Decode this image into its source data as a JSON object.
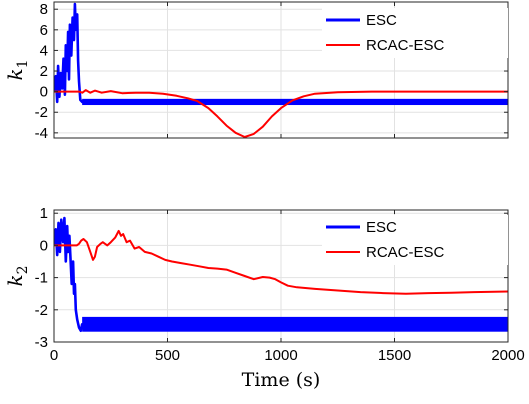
{
  "chart_data": [
    {
      "type": "line",
      "ylabel_var": "k",
      "ylabel_sub": "1",
      "xlim": [
        0,
        2000
      ],
      "ylim": [
        -4.5,
        8.7
      ],
      "yticks": [
        8,
        6,
        4,
        2,
        0,
        -2,
        -4
      ],
      "xticks": [
        0,
        500,
        1000,
        1500,
        2000
      ],
      "grid": true,
      "legend_position": "top-right",
      "series": [
        {
          "name": "ESC",
          "color": "#0000ff",
          "band": true,
          "points": [
            [
              0,
              0
            ],
            [
              8,
              1.5
            ],
            [
              14,
              -1
            ],
            [
              18,
              2.5
            ],
            [
              24,
              -0.5
            ],
            [
              30,
              1.8
            ],
            [
              36,
              0.3
            ],
            [
              42,
              3.2
            ],
            [
              48,
              -0.3
            ],
            [
              52,
              4.5
            ],
            [
              58,
              2
            ],
            [
              62,
              5.8
            ],
            [
              66,
              1.2
            ],
            [
              70,
              6.5
            ],
            [
              76,
              3.5
            ],
            [
              82,
              7.2
            ],
            [
              88,
              5
            ],
            [
              92,
              8.5
            ],
            [
              96,
              6
            ],
            [
              102,
              7.5
            ],
            [
              106,
              3
            ],
            [
              110,
              1
            ],
            [
              116,
              -0.8
            ],
            [
              124,
              -1
            ],
            [
              2000,
              -1
            ]
          ],
          "band_range": [
            -1.3,
            -0.7
          ]
        },
        {
          "name": "RCAC-ESC",
          "color": "#ff0000",
          "band": false,
          "points": [
            [
              0,
              0
            ],
            [
              110,
              0
            ],
            [
              125,
              -0.1
            ],
            [
              140,
              0.15
            ],
            [
              160,
              -0.1
            ],
            [
              180,
              0.1
            ],
            [
              210,
              -0.1
            ],
            [
              250,
              0.05
            ],
            [
              300,
              -0.15
            ],
            [
              360,
              -0.1
            ],
            [
              420,
              -0.1
            ],
            [
              480,
              -0.2
            ],
            [
              540,
              -0.4
            ],
            [
              590,
              -0.65
            ],
            [
              630,
              -0.9
            ],
            [
              680,
              -1.6
            ],
            [
              720,
              -2.4
            ],
            [
              760,
              -3.3
            ],
            [
              800,
              -4.0
            ],
            [
              840,
              -4.4
            ],
            [
              880,
              -4.1
            ],
            [
              920,
              -3.4
            ],
            [
              960,
              -2.4
            ],
            [
              1000,
              -1.6
            ],
            [
              1050,
              -0.85
            ],
            [
              1100,
              -0.45
            ],
            [
              1150,
              -0.2
            ],
            [
              1250,
              -0.05
            ],
            [
              1400,
              0
            ],
            [
              2000,
              0
            ]
          ]
        }
      ]
    },
    {
      "type": "line",
      "ylabel_var": "k",
      "ylabel_sub": "2",
      "xlim": [
        0,
        2000
      ],
      "ylim": [
        -3,
        1.1
      ],
      "yticks": [
        1,
        0,
        -1,
        -2,
        -3
      ],
      "xticks": [
        0,
        500,
        1000,
        1500,
        2000
      ],
      "xticklabels": [
        "0",
        "500",
        "1000",
        "1500",
        "2000"
      ],
      "xlabel": "Time (s)",
      "grid": true,
      "legend_position": "top-right",
      "series": [
        {
          "name": "ESC",
          "color": "#0000ff",
          "band": true,
          "points": [
            [
              0,
              0
            ],
            [
              8,
              0.5
            ],
            [
              14,
              -0.3
            ],
            [
              20,
              0.7
            ],
            [
              26,
              -0.2
            ],
            [
              32,
              0.8
            ],
            [
              40,
              0.1
            ],
            [
              46,
              0.85
            ],
            [
              52,
              -0.5
            ],
            [
              58,
              0.6
            ],
            [
              62,
              -0.2
            ],
            [
              68,
              0.3
            ],
            [
              74,
              -0.6
            ],
            [
              78,
              -1.2
            ],
            [
              84,
              -0.5
            ],
            [
              88,
              -1.5
            ],
            [
              92,
              -1.2
            ],
            [
              96,
              -2.0
            ],
            [
              102,
              -2.3
            ],
            [
              110,
              -2.55
            ],
            [
              118,
              -2.65
            ],
            [
              124,
              -2.45
            ],
            [
              2000,
              -2.45
            ]
          ],
          "band_range": [
            -2.68,
            -2.22
          ]
        },
        {
          "name": "RCAC-ESC",
          "color": "#ff0000",
          "band": false,
          "points": [
            [
              0,
              0
            ],
            [
              100,
              0
            ],
            [
              110,
              0.05
            ],
            [
              120,
              0.15
            ],
            [
              130,
              0.2
            ],
            [
              145,
              0.1
            ],
            [
              160,
              -0.2
            ],
            [
              172,
              -0.45
            ],
            [
              180,
              -0.35
            ],
            [
              190,
              -0.05
            ],
            [
              205,
              0.05
            ],
            [
              215,
              0.1
            ],
            [
              235,
              0
            ],
            [
              250,
              0.1
            ],
            [
              270,
              0.25
            ],
            [
              285,
              0.45
            ],
            [
              295,
              0.3
            ],
            [
              305,
              0.35
            ],
            [
              320,
              0.1
            ],
            [
              335,
              0.15
            ],
            [
              355,
              -0.1
            ],
            [
              375,
              -0.05
            ],
            [
              400,
              -0.2
            ],
            [
              430,
              -0.25
            ],
            [
              460,
              -0.35
            ],
            [
              490,
              -0.45
            ],
            [
              520,
              -0.5
            ],
            [
              560,
              -0.55
            ],
            [
              600,
              -0.6
            ],
            [
              640,
              -0.65
            ],
            [
              680,
              -0.7
            ],
            [
              720,
              -0.72
            ],
            [
              760,
              -0.75
            ],
            [
              800,
              -0.85
            ],
            [
              840,
              -0.95
            ],
            [
              880,
              -1.05
            ],
            [
              920,
              -0.98
            ],
            [
              950,
              -1.0
            ],
            [
              975,
              -1.05
            ],
            [
              1000,
              -1.15
            ],
            [
              1030,
              -1.25
            ],
            [
              1070,
              -1.3
            ],
            [
              1150,
              -1.35
            ],
            [
              1250,
              -1.4
            ],
            [
              1350,
              -1.45
            ],
            [
              1450,
              -1.48
            ],
            [
              1550,
              -1.5
            ],
            [
              1650,
              -1.48
            ],
            [
              1750,
              -1.47
            ],
            [
              1850,
              -1.45
            ],
            [
              2000,
              -1.43
            ]
          ]
        }
      ]
    }
  ]
}
